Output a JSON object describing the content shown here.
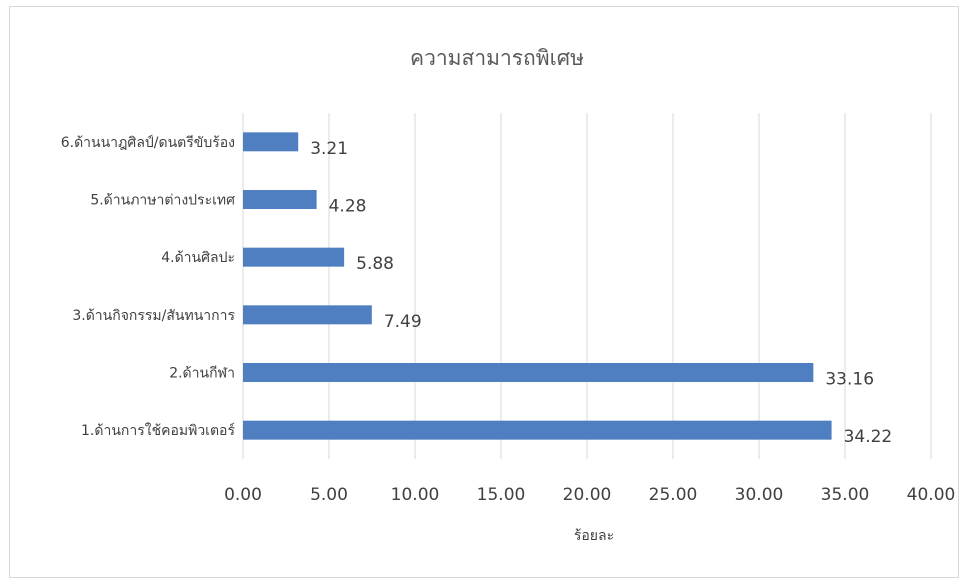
{
  "chart_data": {
    "type": "bar",
    "orientation": "horizontal",
    "title": "ความสามารถพิเศษ",
    "xlabel": "ร้อยละ",
    "ylabel": "",
    "categories": [
      "1.ด้านการใช้คอมพิวเตอร์",
      "2.ด้านกีฬา",
      "3.ด้านกิจกรรม/สันทนาการ",
      "4.ด้านศิลปะ",
      "5.ด้านภาษาต่างประเทศ",
      "6.ด้านนาฎศิลป์/ดนตรีขับร้อง"
    ],
    "values": [
      34.22,
      33.16,
      7.49,
      5.88,
      4.28,
      3.21
    ],
    "value_labels": [
      "34.22",
      "33.16",
      "7.49",
      "5.88",
      "4.28",
      "3.21"
    ],
    "xlim": [
      0,
      40
    ],
    "x_ticks": [
      "0.00",
      "5.00",
      "10.00",
      "15.00",
      "20.00",
      "25.00",
      "30.00",
      "35.00",
      "40.00"
    ],
    "grid": true,
    "legend": "none",
    "bar_color": "#4f7fc1"
  }
}
